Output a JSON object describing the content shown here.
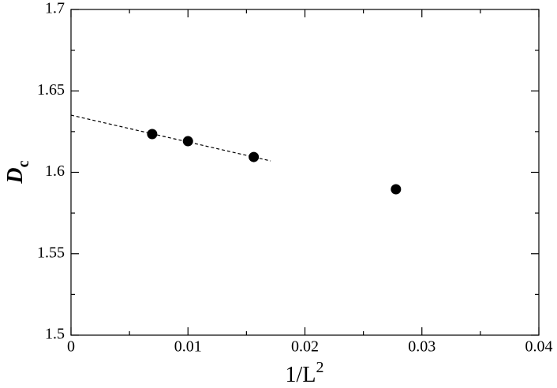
{
  "chart_data": {
    "type": "scatter",
    "xlabel": "1/L",
    "xlabel_sup": "2",
    "ylabel": "D",
    "ylabel_sub": "c",
    "xlim": [
      0,
      0.04
    ],
    "ylim": [
      1.5,
      1.7
    ],
    "xticks": [
      0,
      0.01,
      0.02,
      0.03,
      0.04
    ],
    "yticks": [
      1.5,
      1.55,
      1.6,
      1.65,
      1.7
    ],
    "xminorticks": [
      0.005,
      0.015,
      0.025,
      0.035
    ],
    "yminorticks": [
      1.525,
      1.575,
      1.625,
      1.675
    ],
    "series": [
      {
        "color": "#000000",
        "x": [
          0.00694,
          0.01,
          0.015625,
          0.02778
        ],
        "values": [
          1.6235,
          1.6191,
          1.6094,
          1.5896
        ]
      },
      {
        "type": "line",
        "dashed": true,
        "color": "#000000",
        "x": [
          0,
          0.01707
        ],
        "values": [
          1.6351,
          1.607
        ]
      }
    ]
  }
}
